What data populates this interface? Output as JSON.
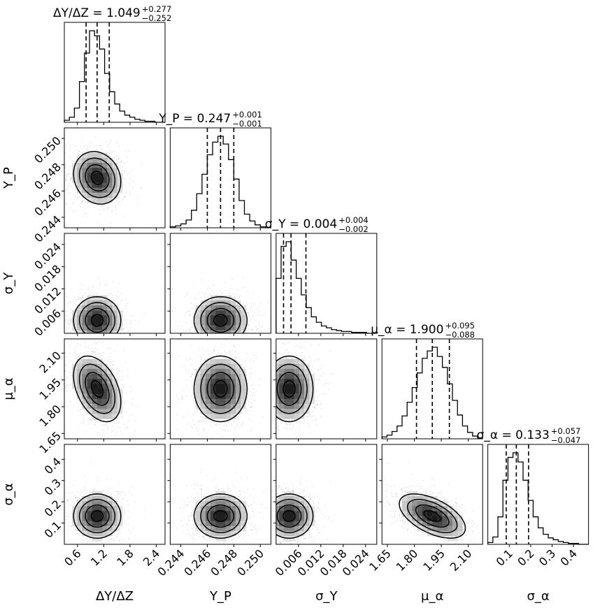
{
  "chart_data": {
    "type": "corner",
    "description_params": [
      "ΔY/ΔZ",
      "Y_P",
      "σ_Y",
      "μ_α",
      "σ_α"
    ],
    "params": [
      {
        "key": "dydz",
        "axis_label": "ΔY/ΔZ",
        "title_lhs": "ΔY/ΔZ = 1.049",
        "title_plus": "+0.277",
        "title_minus": "−0.252",
        "median": 1.049,
        "q16": 0.797,
        "q84": 1.326,
        "range": [
          0.3,
          2.6
        ],
        "ticks": [
          0.6,
          1.2,
          1.8,
          2.4
        ],
        "tick_labels": [
          "0.6",
          "1.2",
          "1.8",
          "2.4"
        ],
        "hist_bins": [
          0.3,
          0.415,
          0.53,
          0.645,
          0.76,
          0.875,
          0.99,
          1.105,
          1.22,
          1.335,
          1.45,
          1.565,
          1.68,
          1.795,
          1.91,
          2.025,
          2.14,
          2.255,
          2.37,
          2.485,
          2.6
        ],
        "hist_counts": [
          2,
          5,
          14,
          40,
          68,
          90,
          85,
          72,
          48,
          30,
          18,
          11,
          7,
          5,
          3,
          2,
          1,
          1,
          0,
          0
        ]
      },
      {
        "key": "yp",
        "axis_label": "Y_P",
        "title_lhs": "Y_P = 0.247",
        "title_plus": "+0.001",
        "title_minus": "−0.001",
        "median": 0.247,
        "q16": 0.246,
        "q84": 0.248,
        "range": [
          0.2432,
          0.2508
        ],
        "ticks": [
          0.244,
          0.246,
          0.248,
          0.25
        ],
        "tick_labels": [
          "0.244",
          "0.246",
          "0.248",
          "0.250"
        ],
        "hist_bins": [
          0.2432,
          0.2436,
          0.244,
          0.2444,
          0.2448,
          0.2452,
          0.2456,
          0.246,
          0.2464,
          0.2468,
          0.2472,
          0.2476,
          0.248,
          0.2484,
          0.2488,
          0.2492,
          0.2496,
          0.25,
          0.2504,
          0.2508
        ],
        "hist_counts": [
          1,
          2,
          4,
          8,
          18,
          35,
          55,
          75,
          88,
          94,
          86,
          70,
          50,
          28,
          14,
          7,
          3,
          1,
          0
        ]
      },
      {
        "key": "sy",
        "axis_label": "σ_Y",
        "title_lhs": "σ_Y = 0.004",
        "title_plus": "+0.004",
        "title_minus": "−0.002",
        "median": 0.004,
        "q16": 0.002,
        "q84": 0.008,
        "range": [
          0.0,
          0.027
        ],
        "ticks": [
          0.006,
          0.012,
          0.018,
          0.024
        ],
        "tick_labels": [
          "0.006",
          "0.012",
          "0.018",
          "0.024"
        ],
        "hist_bins": [
          0.0,
          0.00135,
          0.0027,
          0.00405,
          0.0054,
          0.00675,
          0.0081,
          0.00945,
          0.0108,
          0.01215,
          0.0135,
          0.01485,
          0.0162,
          0.01755,
          0.0189,
          0.02025,
          0.0216,
          0.02295,
          0.0243,
          0.02565,
          0.027
        ],
        "hist_counts": [
          60,
          95,
          100,
          80,
          60,
          42,
          28,
          18,
          12,
          8,
          6,
          4,
          3,
          2,
          2,
          1,
          1,
          1,
          0,
          0
        ]
      },
      {
        "key": "mua",
        "axis_label": "μ_α",
        "title_lhs": "μ_α = 1.900",
        "title_plus": "+0.095",
        "title_minus": "−0.088",
        "median": 1.9,
        "q16": 1.812,
        "q84": 1.995,
        "range": [
          1.62,
          2.18
        ],
        "ticks": [
          1.65,
          1.8,
          1.95,
          2.1
        ],
        "tick_labels": [
          "1.65",
          "1.80",
          "1.95",
          "2.10"
        ],
        "hist_bins": [
          1.62,
          1.648,
          1.676,
          1.704,
          1.732,
          1.76,
          1.788,
          1.816,
          1.844,
          1.872,
          1.9,
          1.928,
          1.956,
          1.984,
          2.012,
          2.04,
          2.068,
          2.096,
          2.124,
          2.152,
          2.18
        ],
        "hist_counts": [
          2,
          4,
          8,
          14,
          25,
          40,
          56,
          72,
          88,
          96,
          100,
          90,
          78,
          60,
          42,
          26,
          14,
          7,
          3,
          1
        ]
      },
      {
        "key": "sa",
        "axis_label": "σ_α",
        "title_lhs": "σ_α = 0.133",
        "title_plus": "+0.057",
        "title_minus": "−0.047",
        "median": 0.133,
        "q16": 0.086,
        "q84": 0.19,
        "range": [
          0.0,
          0.47
        ],
        "ticks": [
          0.1,
          0.2,
          0.3,
          0.4
        ],
        "tick_labels": [
          "0.1",
          "0.2",
          "0.3",
          "0.4"
        ],
        "hist_bins": [
          0.0,
          0.0235,
          0.047,
          0.0705,
          0.094,
          0.1175,
          0.141,
          0.1645,
          0.188,
          0.2115,
          0.235,
          0.2585,
          0.282,
          0.3055,
          0.329,
          0.3525,
          0.376,
          0.3995,
          0.423,
          0.4465,
          0.47
        ],
        "hist_counts": [
          2,
          8,
          30,
          70,
          95,
          100,
          90,
          70,
          48,
          30,
          18,
          11,
          7,
          5,
          3,
          2,
          1,
          1,
          0,
          0
        ]
      }
    ],
    "pairs": [
      {
        "x": 0,
        "y": 1,
        "center": [
          1.05,
          0.247
        ],
        "sigma": [
          0.27,
          0.001
        ],
        "rho": -0.15
      },
      {
        "x": 0,
        "y": 2,
        "center": [
          1.05,
          0.0035
        ],
        "sigma": [
          0.27,
          0.0032
        ],
        "rho": 0.0,
        "floor": true
      },
      {
        "x": 1,
        "y": 2,
        "center": [
          0.247,
          0.0035
        ],
        "sigma": [
          0.001,
          0.0032
        ],
        "rho": 0.0,
        "floor": true
      },
      {
        "x": 0,
        "y": 3,
        "center": [
          1.05,
          1.9
        ],
        "sigma": [
          0.27,
          0.092
        ],
        "rho": -0.4
      },
      {
        "x": 1,
        "y": 3,
        "center": [
          0.247,
          1.9
        ],
        "sigma": [
          0.001,
          0.092
        ],
        "rho": 0.0
      },
      {
        "x": 2,
        "y": 3,
        "center": [
          0.0035,
          1.9
        ],
        "sigma": [
          0.0032,
          0.092
        ],
        "rho": 0.0,
        "floorx": true
      },
      {
        "x": 0,
        "y": 4,
        "center": [
          1.05,
          0.133
        ],
        "sigma": [
          0.27,
          0.052
        ],
        "rho": 0.0
      },
      {
        "x": 1,
        "y": 4,
        "center": [
          0.247,
          0.133
        ],
        "sigma": [
          0.001,
          0.052
        ],
        "rho": 0.0
      },
      {
        "x": 2,
        "y": 4,
        "center": [
          0.0035,
          0.133
        ],
        "sigma": [
          0.0032,
          0.052
        ],
        "rho": 0.0,
        "floorx": true
      },
      {
        "x": 3,
        "y": 4,
        "center": [
          1.9,
          0.133
        ],
        "sigma": [
          0.092,
          0.052
        ],
        "rho": -0.55
      }
    ],
    "contour_levels_sigma": [
      0.5,
      1.0,
      1.5,
      2.0
    ]
  }
}
